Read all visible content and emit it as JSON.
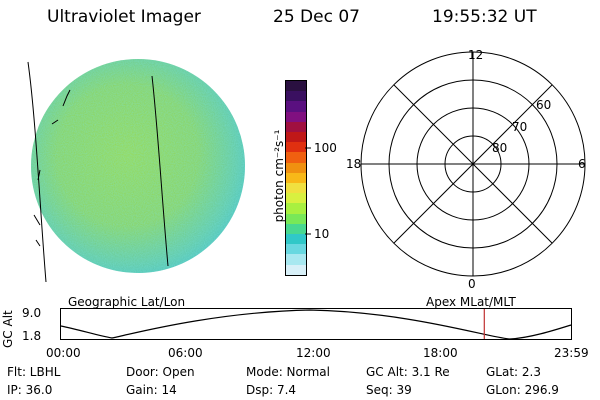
{
  "header": {
    "instrument": "Ultraviolet Imager",
    "date": "25 Dec 07",
    "time": "19:55:32 UT"
  },
  "colorbar": {
    "label": "photon cm⁻²s⁻¹",
    "ticks": [
      "100",
      "10"
    ],
    "colors": [
      "#2a1040",
      "#3a1060",
      "#5a1080",
      "#801080",
      "#a01040",
      "#c01818",
      "#e03010",
      "#f06010",
      "#f09010",
      "#f8b818",
      "#f0e040",
      "#d8f040",
      "#a8f040",
      "#78e858",
      "#48d890",
      "#30c8c8",
      "#68d8e0",
      "#a8e8f0",
      "#d8f0f8"
    ]
  },
  "polar": {
    "labels": {
      "top": "12",
      "left": "18",
      "right": "6",
      "bottom": "0"
    },
    "lat_labels": [
      "60",
      "70",
      "80"
    ]
  },
  "orbit": {
    "left_label": "Geographic Lat/Lon",
    "right_label": "Apex MLat/MLT",
    "axis_title": "GC Alt",
    "y_top": "9.0",
    "y_bottom": "1.8",
    "x_ticks": [
      "00:00",
      "06:00",
      "12:00",
      "18:00",
      "23:59"
    ],
    "current_time_fraction": 0.83
  },
  "meta": {
    "flt": "Flt: LBHL",
    "door": "Door: Open",
    "mode": "Mode: Normal",
    "gcalt": "GC Alt: 3.1 Re",
    "glat": "GLat:    2.3",
    "ip": "IP: 36.0",
    "gain": "Gain: 14",
    "dsp": "Dsp:    7.4",
    "seq": "Seq: 39",
    "glon": "GLon: 296.9"
  }
}
